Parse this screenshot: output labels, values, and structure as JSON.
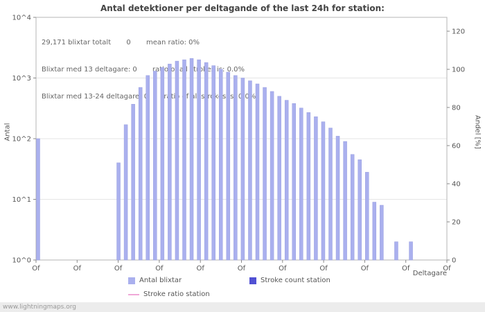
{
  "title": "Antal detektioner per deltagande of the last 24h for station:",
  "annotations": {
    "line1": "29,171 blixtar totalt       0       mean ratio: 0%",
    "line2": "Blixtar med 13 deltagare: 0       ratio of all strokes is: 0.0%",
    "line3": "Blixtar med 13-24 deltagare: 0       ratio of all strokes is: 0.0%"
  },
  "axes": {
    "left_label": "Antal",
    "right_label": "Andel [%]",
    "x_label": "Deltagare",
    "left_ticks": [
      "10^0",
      "10^1",
      "10^2",
      "10^3",
      "10^4"
    ],
    "right_ticks": [
      "0",
      "20",
      "40",
      "60",
      "80",
      "100",
      "120"
    ],
    "x_ticks": [
      "Of",
      "Of",
      "Of",
      "Of",
      "Of",
      "Of",
      "Of",
      "Of",
      "Of",
      "Of",
      "Of"
    ]
  },
  "legend": [
    {
      "label": "Antal blixtar",
      "type": "square",
      "color": "#aab0ee"
    },
    {
      "label": "Stroke count station",
      "type": "square",
      "color": "#5151d3"
    },
    {
      "label": "Stroke ratio station",
      "type": "line",
      "color": "#f0a8d8"
    }
  ],
  "watermark": "www.lightningmaps.org",
  "chart_data": {
    "type": "bar",
    "title": "Antal detektioner per deltagande of the last 24h for station:",
    "ylabel": "Antal",
    "y2label": "Andel [%]",
    "xlabel": "Deltagare",
    "y_scale": "log",
    "ylim": [
      1,
      10000
    ],
    "y2lim": [
      0,
      130
    ],
    "grid": true,
    "legend_position": "bottom",
    "series_name": "Antal blixtar",
    "total_strokes": "29,171 blixtar totalt",
    "bar_color": "#aab0ee",
    "bar_edge_color": "#9aa0e0",
    "values": [
      100,
      null,
      null,
      null,
      null,
      null,
      null,
      null,
      null,
      null,
      null,
      40,
      170,
      370,
      700,
      1100,
      1300,
      1500,
      1700,
      1900,
      2000,
      2100,
      2000,
      1800,
      1600,
      1400,
      1250,
      1100,
      1000,
      900,
      800,
      700,
      600,
      500,
      430,
      380,
      320,
      270,
      230,
      190,
      150,
      110,
      90,
      55,
      45,
      28,
      9,
      8,
      null,
      2,
      null,
      2
    ]
  }
}
